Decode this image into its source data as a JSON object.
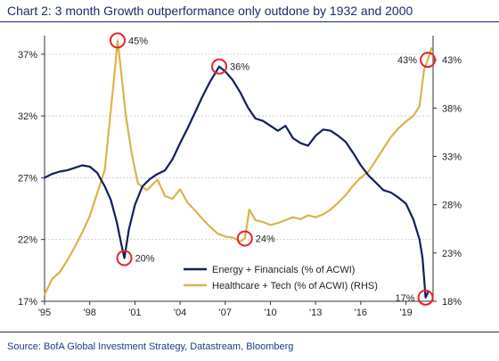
{
  "header": {
    "title": "Chart 2: 3 month Growth outperformance only outdone by 1932 and 2000"
  },
  "footer": {
    "source": "Source: BofA Global Investment Strategy, Datastream, Bloomberg"
  },
  "colors": {
    "navy": "#0f1f5c",
    "gold": "#d9b44a",
    "highlight": "#e8202a",
    "axis": "#333333"
  },
  "chart_data": {
    "type": "line",
    "x_range": [
      1995,
      2020.8
    ],
    "x_ticks": [
      {
        "value": 1995,
        "label": "'95"
      },
      {
        "value": 1998,
        "label": "'98"
      },
      {
        "value": 2001,
        "label": "'01"
      },
      {
        "value": 2004,
        "label": "'04"
      },
      {
        "value": 2007,
        "label": "'07"
      },
      {
        "value": 2010,
        "label": "'10"
      },
      {
        "value": 2013,
        "label": "'13"
      },
      {
        "value": 2016,
        "label": "'16"
      },
      {
        "value": 2019,
        "label": "'19"
      }
    ],
    "y_left": {
      "range": [
        17,
        38.5
      ],
      "ticks": [
        {
          "value": 17,
          "label": "17%"
        },
        {
          "value": 22,
          "label": "22%"
        },
        {
          "value": 27,
          "label": "27%"
        },
        {
          "value": 32,
          "label": "32%"
        },
        {
          "value": 37,
          "label": "37%"
        }
      ]
    },
    "y_right": {
      "range": [
        18,
        45.5
      ],
      "ticks": [
        {
          "value": 18,
          "label": "18%"
        },
        {
          "value": 23,
          "label": "23%"
        },
        {
          "value": 28,
          "label": "28%"
        },
        {
          "value": 33,
          "label": "33%"
        },
        {
          "value": 38,
          "label": "38%"
        },
        {
          "value": 43,
          "label": "43%"
        }
      ]
    },
    "legend_position": "bottom-right",
    "series": [
      {
        "name": "Energy + Financials (% of ACWI)",
        "axis": "left",
        "color": "#0f1f5c",
        "points": [
          [
            1995.0,
            27.0
          ],
          [
            1995.5,
            27.3
          ],
          [
            1996.0,
            27.5
          ],
          [
            1996.5,
            27.6
          ],
          [
            1997.0,
            27.8
          ],
          [
            1997.5,
            28.0
          ],
          [
            1998.0,
            27.9
          ],
          [
            1998.5,
            27.4
          ],
          [
            1999.0,
            26.3
          ],
          [
            1999.4,
            25.2
          ],
          [
            1999.8,
            23.4
          ],
          [
            2000.1,
            21.6
          ],
          [
            2000.3,
            20.5
          ],
          [
            2000.6,
            22.8
          ],
          [
            2001.0,
            24.8
          ],
          [
            2001.5,
            26.3
          ],
          [
            2002.0,
            26.9
          ],
          [
            2002.5,
            27.3
          ],
          [
            2003.0,
            27.6
          ],
          [
            2003.5,
            28.5
          ],
          [
            2004.0,
            29.8
          ],
          [
            2004.5,
            31.0
          ],
          [
            2005.0,
            32.3
          ],
          [
            2005.5,
            33.6
          ],
          [
            2006.0,
            34.8
          ],
          [
            2006.6,
            36.0
          ],
          [
            2007.0,
            35.6
          ],
          [
            2007.5,
            34.9
          ],
          [
            2008.0,
            33.9
          ],
          [
            2008.5,
            32.7
          ],
          [
            2009.0,
            31.8
          ],
          [
            2009.5,
            31.6
          ],
          [
            2010.0,
            31.2
          ],
          [
            2010.5,
            30.8
          ],
          [
            2011.0,
            31.2
          ],
          [
            2011.5,
            30.2
          ],
          [
            2012.0,
            29.8
          ],
          [
            2012.5,
            29.6
          ],
          [
            2013.0,
            30.4
          ],
          [
            2013.5,
            30.9
          ],
          [
            2014.0,
            30.8
          ],
          [
            2014.5,
            30.4
          ],
          [
            2015.0,
            29.9
          ],
          [
            2015.5,
            29.0
          ],
          [
            2016.0,
            28.0
          ],
          [
            2016.5,
            27.2
          ],
          [
            2017.0,
            26.6
          ],
          [
            2017.5,
            26.0
          ],
          [
            2018.0,
            25.8
          ],
          [
            2018.5,
            25.4
          ],
          [
            2019.0,
            24.9
          ],
          [
            2019.5,
            23.6
          ],
          [
            2019.9,
            22.0
          ],
          [
            2020.1,
            20.5
          ],
          [
            2020.3,
            17.3
          ],
          [
            2020.5,
            17.8
          ]
        ]
      },
      {
        "name": "Healthcare + Tech (% of ACWI) (RHS)",
        "axis": "right",
        "color": "#d9b44a",
        "points": [
          [
            1995.0,
            18.7
          ],
          [
            1995.5,
            20.3
          ],
          [
            1996.0,
            21.0
          ],
          [
            1996.5,
            22.2
          ],
          [
            1997.0,
            23.6
          ],
          [
            1997.5,
            25.1
          ],
          [
            1998.0,
            26.8
          ],
          [
            1998.5,
            29.2
          ],
          [
            1999.0,
            31.6
          ],
          [
            1999.4,
            37.8
          ],
          [
            1999.6,
            40.8
          ],
          [
            1999.85,
            45.0
          ],
          [
            2000.1,
            41.5
          ],
          [
            2000.4,
            37.2
          ],
          [
            2000.8,
            33.2
          ],
          [
            2001.2,
            30.2
          ],
          [
            2001.8,
            29.5
          ],
          [
            2002.5,
            30.6
          ],
          [
            2003.0,
            28.9
          ],
          [
            2003.5,
            28.6
          ],
          [
            2004.0,
            29.6
          ],
          [
            2004.5,
            28.2
          ],
          [
            2005.0,
            27.4
          ],
          [
            2005.5,
            26.5
          ],
          [
            2006.0,
            25.7
          ],
          [
            2006.5,
            25.0
          ],
          [
            2007.0,
            24.7
          ],
          [
            2007.5,
            24.6
          ],
          [
            2008.0,
            24.2
          ],
          [
            2008.3,
            24.5
          ],
          [
            2008.6,
            27.5
          ],
          [
            2009.0,
            26.4
          ],
          [
            2009.5,
            26.2
          ],
          [
            2010.0,
            25.9
          ],
          [
            2010.5,
            26.1
          ],
          [
            2011.0,
            26.4
          ],
          [
            2011.5,
            26.7
          ],
          [
            2012.0,
            26.5
          ],
          [
            2012.5,
            26.9
          ],
          [
            2013.0,
            26.7
          ],
          [
            2013.5,
            27.0
          ],
          [
            2014.0,
            27.5
          ],
          [
            2014.5,
            28.2
          ],
          [
            2015.0,
            29.0
          ],
          [
            2015.5,
            30.0
          ],
          [
            2016.0,
            30.8
          ],
          [
            2016.5,
            31.4
          ],
          [
            2017.0,
            32.6
          ],
          [
            2017.5,
            33.8
          ],
          [
            2018.0,
            35.0
          ],
          [
            2018.5,
            35.9
          ],
          [
            2019.0,
            36.6
          ],
          [
            2019.5,
            37.2
          ],
          [
            2019.9,
            38.2
          ],
          [
            2020.2,
            42.0
          ],
          [
            2020.45,
            43.0
          ],
          [
            2020.7,
            44.2
          ]
        ]
      }
    ],
    "annotations": [
      {
        "label": "45%",
        "series": 1,
        "x": 1999.85,
        "y": 45.0,
        "label_side": "right"
      },
      {
        "label": "20%",
        "series": 0,
        "x": 2000.3,
        "y": 20.5,
        "label_side": "right"
      },
      {
        "label": "36%",
        "series": 0,
        "x": 2006.6,
        "y": 36.0,
        "label_side": "right"
      },
      {
        "label": "24%",
        "series": 1,
        "x": 2008.3,
        "y": 24.5,
        "label_side": "right"
      },
      {
        "label": "43%",
        "series": 1,
        "x": 2020.45,
        "y": 43.0,
        "label_side": "left"
      },
      {
        "label": "17%",
        "series": 0,
        "x": 2020.3,
        "y": 17.3,
        "label_side": "left"
      }
    ]
  }
}
